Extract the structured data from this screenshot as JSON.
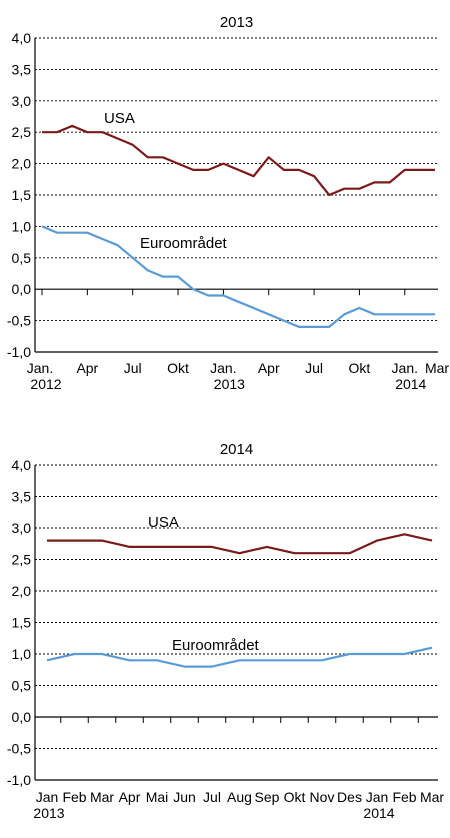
{
  "chart_data": [
    {
      "type": "line",
      "title": "2013",
      "ylim": [
        -1.0,
        4.0
      ],
      "yticks": [
        "4,0",
        "3,5",
        "3,0",
        "2,5",
        "2,0",
        "1,5",
        "1,0",
        "0,5",
        "0,0",
        "-0,5",
        "-1,0"
      ],
      "x_labels": [
        {
          "text": "Jan.",
          "sub": "2012"
        },
        {
          "text": "Apr",
          "sub": ""
        },
        {
          "text": "Jul",
          "sub": ""
        },
        {
          "text": "Okt",
          "sub": ""
        },
        {
          "text": "Jan.",
          "sub": "2013"
        },
        {
          "text": "Apr",
          "sub": ""
        },
        {
          "text": "Jul",
          "sub": ""
        },
        {
          "text": "Okt",
          "sub": ""
        },
        {
          "text": "Jan.",
          "sub": "2014"
        },
        {
          "text": "Mar",
          "sub": ""
        }
      ],
      "grid": true,
      "series": [
        {
          "name": "USA",
          "color": "#7b1a1a",
          "values": [
            2.5,
            2.5,
            2.6,
            2.5,
            2.5,
            2.4,
            2.3,
            2.1,
            2.1,
            2.0,
            1.9,
            1.9,
            2.0,
            1.9,
            1.8,
            2.1,
            1.9,
            1.9,
            1.8,
            1.5,
            1.6,
            1.6,
            1.7,
            1.7,
            1.9,
            1.9,
            1.9
          ]
        },
        {
          "name": "Euroområdet",
          "color": "#5b9bd5",
          "values": [
            1.0,
            0.9,
            0.9,
            0.9,
            0.8,
            0.7,
            0.5,
            0.3,
            0.2,
            0.2,
            0.0,
            -0.1,
            -0.1,
            -0.2,
            -0.3,
            -0.4,
            -0.5,
            -0.6,
            -0.6,
            -0.6,
            -0.4,
            -0.3,
            -0.4,
            -0.4,
            -0.4,
            -0.4,
            -0.4
          ]
        }
      ]
    },
    {
      "type": "line",
      "title": "2014",
      "ylim": [
        -1.0,
        4.0
      ],
      "yticks": [
        "4,0",
        "3,5",
        "3,0",
        "2,5",
        "2,0",
        "1,5",
        "1,0",
        "0,5",
        "0,0",
        "-0,5",
        "-1,0"
      ],
      "x_labels": [
        {
          "text": "Jan",
          "sub": "2013"
        },
        {
          "text": "Feb",
          "sub": ""
        },
        {
          "text": "Mar",
          "sub": ""
        },
        {
          "text": "Apr",
          "sub": ""
        },
        {
          "text": "Mai",
          "sub": ""
        },
        {
          "text": "Jun",
          "sub": ""
        },
        {
          "text": "Jul",
          "sub": ""
        },
        {
          "text": "Aug",
          "sub": ""
        },
        {
          "text": "Sep",
          "sub": ""
        },
        {
          "text": "Okt",
          "sub": ""
        },
        {
          "text": "Nov",
          "sub": ""
        },
        {
          "text": "Des",
          "sub": ""
        },
        {
          "text": "Jan",
          "sub": "2014"
        },
        {
          "text": "Feb",
          "sub": ""
        },
        {
          "text": "Mar",
          "sub": ""
        }
      ],
      "grid": true,
      "series": [
        {
          "name": "USA",
          "color": "#7b1a1a",
          "values": [
            2.8,
            2.8,
            2.8,
            2.7,
            2.7,
            2.7,
            2.7,
            2.6,
            2.7,
            2.6,
            2.6,
            2.6,
            2.8,
            2.9,
            2.8
          ]
        },
        {
          "name": "Euroområdet",
          "color": "#5b9bd5",
          "values": [
            0.9,
            1.0,
            1.0,
            0.9,
            0.9,
            0.8,
            0.8,
            0.9,
            0.9,
            0.9,
            0.9,
            1.0,
            1.0,
            1.0,
            1.1
          ]
        }
      ]
    }
  ]
}
